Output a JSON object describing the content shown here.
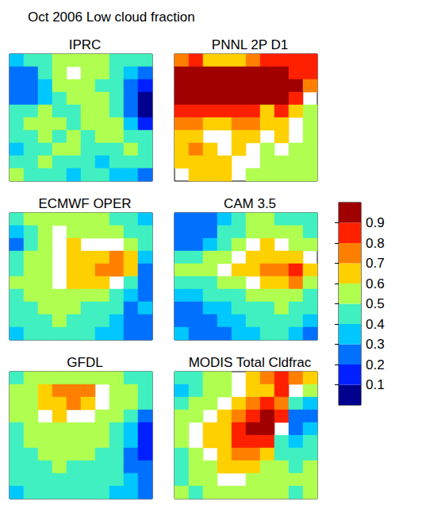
{
  "title": "Oct 2006 Low cloud fraction",
  "colorbar": {
    "range": [
      0,
      1
    ],
    "ticks": [
      0.1,
      0.2,
      0.3,
      0.4,
      0.5,
      0.6,
      0.7,
      0.8,
      0.9
    ],
    "colors": [
      "#00008f",
      "#0020ff",
      "#0070ff",
      "#00c8ff",
      "#40f0c0",
      "#b0ff50",
      "#ffd000",
      "#ff8000",
      "#ff2000",
      "#a00000"
    ]
  },
  "chart_data": [
    {
      "type": "heatmap",
      "title": "IPRC",
      "tick_labels": false,
      "values": [
        [
          0.35,
          0.4,
          0.45,
          0.5,
          0.55,
          0.55,
          0.5,
          0.45,
          0.4,
          0.4
        ],
        [
          0.3,
          0.3,
          0.45,
          0.55,
          0.6,
          0.55,
          0.5,
          0.45,
          0.35,
          0.3
        ],
        [
          0.25,
          0.2,
          0.35,
          0.5,
          0.55,
          0.5,
          0.45,
          0.4,
          0.3,
          0.15
        ],
        [
          0.3,
          0.25,
          0.35,
          0.45,
          0.5,
          0.55,
          0.5,
          0.45,
          0.25,
          0.05
        ],
        [
          0.4,
          0.45,
          0.5,
          0.45,
          0.45,
          0.5,
          0.55,
          0.45,
          0.3,
          0.05
        ],
        [
          0.45,
          0.55,
          0.5,
          0.55,
          0.45,
          0.5,
          0.55,
          0.5,
          0.35,
          0.15
        ],
        [
          0.4,
          0.45,
          0.55,
          0.45,
          0.5,
          0.45,
          0.5,
          0.55,
          0.45,
          0.4
        ],
        [
          0.35,
          0.4,
          0.45,
          0.55,
          0.5,
          0.45,
          0.4,
          0.45,
          0.5,
          0.45
        ],
        [
          0.45,
          0.4,
          0.5,
          0.45,
          0.45,
          0.4,
          0.35,
          0.4,
          0.45,
          0.4
        ],
        [
          0.5,
          0.45,
          0.45,
          0.4,
          0.35,
          0.4,
          0.45,
          0.35,
          0.35,
          0.3
        ]
      ]
    },
    {
      "type": "heatmap",
      "title": "PNNL 2P D1",
      "tick_labels": false,
      "values": [
        [
          0.75,
          0.8,
          0.7,
          0.65,
          0.7,
          0.75,
          0.8,
          0.85,
          0.85,
          0.8
        ],
        [
          0.95,
          0.95,
          0.95,
          0.95,
          0.95,
          0.95,
          0.95,
          0.9,
          0.85,
          0.8
        ],
        [
          0.95,
          0.97,
          0.97,
          0.97,
          0.97,
          0.97,
          0.95,
          0.95,
          0.9,
          0.75
        ],
        [
          0.92,
          0.95,
          0.95,
          0.95,
          0.95,
          0.95,
          0.95,
          0.92,
          0.85,
          0.6
        ],
        [
          0.85,
          0.88,
          0.85,
          0.82,
          0.85,
          0.85,
          0.7,
          0.8,
          0.7,
          0.55
        ],
        [
          0.75,
          0.72,
          0.65,
          0.7,
          0.75,
          0.72,
          0.65,
          0.7,
          0.6,
          0.5
        ],
        [
          0.65,
          0.7,
          0.6,
          0.6,
          0.65,
          0.65,
          0.6,
          0.65,
          0.6,
          0.55
        ],
        [
          0.7,
          0.75,
          0.65,
          0.6,
          0.65,
          0.6,
          0.55,
          0.6,
          0.55,
          0.5
        ],
        [
          0.65,
          0.62,
          0.65,
          0.7,
          0.6,
          0.6,
          0.55,
          0.5,
          0.55,
          0.5
        ],
        [
          0.6,
          0.65,
          0.7,
          0.65,
          0.6,
          0.55,
          0.55,
          0.5,
          0.55,
          0.55
        ]
      ]
    },
    {
      "type": "heatmap",
      "title": "ECMWF OPER",
      "tick_labels": false,
      "values": [
        [
          0.45,
          0.5,
          0.5,
          0.55,
          0.55,
          0.5,
          0.5,
          0.45,
          0.4,
          0.35
        ],
        [
          0.35,
          0.45,
          0.55,
          0.6,
          0.55,
          0.55,
          0.55,
          0.5,
          0.45,
          0.4
        ],
        [
          0.3,
          0.45,
          0.55,
          0.6,
          0.65,
          0.6,
          0.6,
          0.6,
          0.55,
          0.45
        ],
        [
          0.4,
          0.5,
          0.55,
          0.6,
          0.65,
          0.65,
          0.7,
          0.72,
          0.65,
          0.35
        ],
        [
          0.45,
          0.5,
          0.55,
          0.6,
          0.65,
          0.7,
          0.75,
          0.75,
          0.7,
          0.3
        ],
        [
          0.5,
          0.5,
          0.55,
          0.6,
          0.62,
          0.65,
          0.65,
          0.6,
          0.45,
          0.25
        ],
        [
          0.45,
          0.5,
          0.5,
          0.55,
          0.55,
          0.55,
          0.5,
          0.45,
          0.35,
          0.3
        ],
        [
          0.4,
          0.45,
          0.5,
          0.5,
          0.5,
          0.45,
          0.45,
          0.4,
          0.3,
          0.35
        ],
        [
          0.4,
          0.45,
          0.45,
          0.5,
          0.45,
          0.45,
          0.4,
          0.35,
          0.3,
          0.25
        ],
        [
          0.35,
          0.4,
          0.45,
          0.45,
          0.4,
          0.4,
          0.35,
          0.35,
          0.3,
          0.25
        ]
      ]
    },
    {
      "type": "heatmap",
      "title": "CAM 3.5",
      "tick_labels": false,
      "values": [
        [
          0.3,
          0.25,
          0.3,
          0.35,
          0.45,
          0.5,
          0.5,
          0.45,
          0.45,
          0.4
        ],
        [
          0.2,
          0.2,
          0.3,
          0.4,
          0.45,
          0.5,
          0.55,
          0.5,
          0.5,
          0.45
        ],
        [
          0.3,
          0.3,
          0.35,
          0.45,
          0.5,
          0.6,
          0.65,
          0.6,
          0.55,
          0.5
        ],
        [
          0.45,
          0.45,
          0.5,
          0.55,
          0.6,
          0.65,
          0.7,
          0.7,
          0.65,
          0.6
        ],
        [
          0.5,
          0.5,
          0.55,
          0.6,
          0.65,
          0.7,
          0.72,
          0.75,
          0.8,
          0.7
        ],
        [
          0.4,
          0.45,
          0.45,
          0.5,
          0.55,
          0.6,
          0.65,
          0.7,
          0.72,
          0.5
        ],
        [
          0.35,
          0.35,
          0.4,
          0.45,
          0.45,
          0.5,
          0.55,
          0.55,
          0.5,
          0.45
        ],
        [
          0.3,
          0.3,
          0.35,
          0.35,
          0.4,
          0.45,
          0.45,
          0.5,
          0.45,
          0.4
        ],
        [
          0.3,
          0.3,
          0.3,
          0.35,
          0.35,
          0.4,
          0.4,
          0.45,
          0.4,
          0.35
        ],
        [
          0.35,
          0.3,
          0.3,
          0.3,
          0.35,
          0.35,
          0.4,
          0.4,
          0.35,
          0.3
        ]
      ]
    },
    {
      "type": "heatmap",
      "title": "GFDL",
      "tick_labels": false,
      "values": [
        [
          0.45,
          0.5,
          0.55,
          0.55,
          0.55,
          0.55,
          0.5,
          0.5,
          0.45,
          0.4
        ],
        [
          0.5,
          0.55,
          0.65,
          0.72,
          0.75,
          0.72,
          0.6,
          0.55,
          0.5,
          0.45
        ],
        [
          0.5,
          0.55,
          0.65,
          0.7,
          0.72,
          0.65,
          0.6,
          0.55,
          0.5,
          0.4
        ],
        [
          0.5,
          0.55,
          0.6,
          0.62,
          0.6,
          0.6,
          0.55,
          0.5,
          0.45,
          0.25
        ],
        [
          0.45,
          0.5,
          0.55,
          0.55,
          0.55,
          0.55,
          0.5,
          0.45,
          0.35,
          0.15
        ],
        [
          0.45,
          0.5,
          0.5,
          0.55,
          0.5,
          0.5,
          0.5,
          0.45,
          0.35,
          0.1
        ],
        [
          0.4,
          0.45,
          0.5,
          0.5,
          0.5,
          0.5,
          0.45,
          0.45,
          0.3,
          0.15
        ],
        [
          0.4,
          0.45,
          0.45,
          0.5,
          0.45,
          0.45,
          0.45,
          0.4,
          0.3,
          0.2
        ],
        [
          0.4,
          0.4,
          0.45,
          0.45,
          0.45,
          0.45,
          0.4,
          0.4,
          0.35,
          0.25
        ],
        [
          0.35,
          0.4,
          0.4,
          0.45,
          0.45,
          0.4,
          0.4,
          0.35,
          0.35,
          0.3
        ]
      ]
    },
    {
      "type": "heatmap",
      "title": "MODIS Total Cldfrac",
      "tick_labels": false,
      "values": [
        [
          0.45,
          0.4,
          0.5,
          0.55,
          0.6,
          0.65,
          0.75,
          0.8,
          0.75,
          0.7
        ],
        [
          0.35,
          0.45,
          0.5,
          0.55,
          0.6,
          0.65,
          0.7,
          0.85,
          0.6,
          0.5
        ],
        [
          0.4,
          0.5,
          0.55,
          0.6,
          0.65,
          0.75,
          0.85,
          0.75,
          0.4,
          0.35
        ],
        [
          0.5,
          0.55,
          0.6,
          0.65,
          0.75,
          0.85,
          0.95,
          0.8,
          0.3,
          0.3
        ],
        [
          0.55,
          0.6,
          0.65,
          0.7,
          0.8,
          0.9,
          0.95,
          0.6,
          0.3,
          0.35
        ],
        [
          0.5,
          0.6,
          0.65,
          0.7,
          0.8,
          0.85,
          0.8,
          0.45,
          0.35,
          0.4
        ],
        [
          0.45,
          0.55,
          0.6,
          0.65,
          0.75,
          0.75,
          0.65,
          0.45,
          0.4,
          0.45
        ],
        [
          0.4,
          0.5,
          0.55,
          0.65,
          0.7,
          0.65,
          0.55,
          0.5,
          0.45,
          0.5
        ],
        [
          0.45,
          0.5,
          0.55,
          0.6,
          0.6,
          0.55,
          0.5,
          0.55,
          0.5,
          0.55
        ],
        [
          0.5,
          0.45,
          0.5,
          0.55,
          0.5,
          0.5,
          0.55,
          0.5,
          0.45,
          0.5
        ]
      ]
    }
  ]
}
